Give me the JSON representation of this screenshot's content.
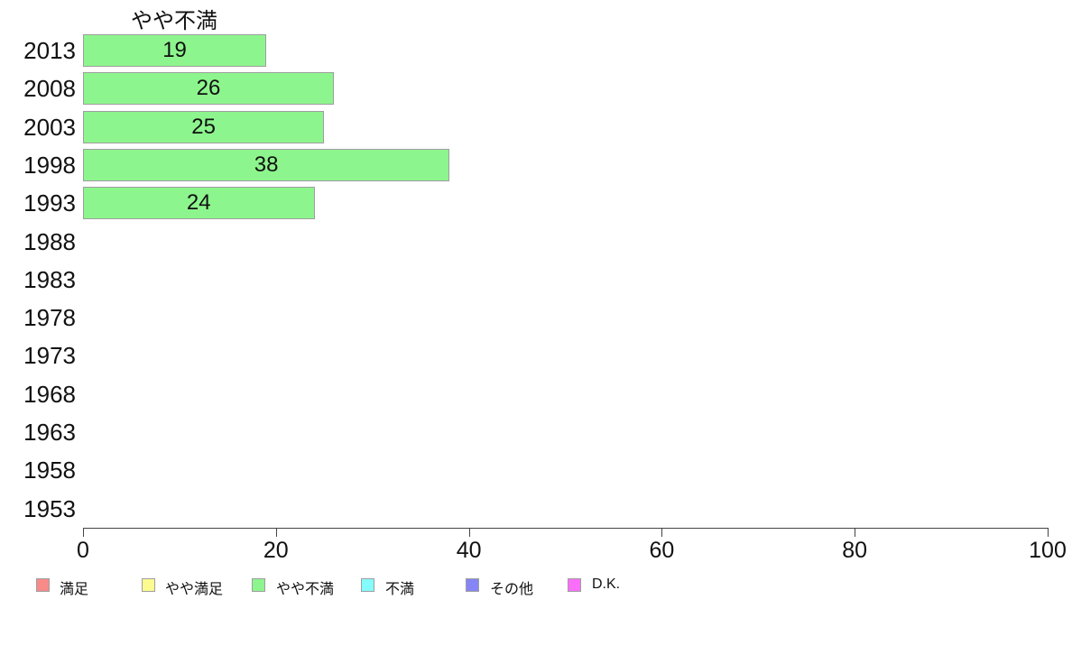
{
  "chart_data": {
    "type": "bar",
    "orientation": "horizontal",
    "title": "やや不満",
    "categories": [
      "2013",
      "2008",
      "2003",
      "1998",
      "1993",
      "1988",
      "1983",
      "1978",
      "1973",
      "1968",
      "1963",
      "1958",
      "1953"
    ],
    "values": [
      19,
      26,
      25,
      38,
      24,
      null,
      null,
      null,
      null,
      null,
      null,
      null,
      null
    ],
    "xlabel": "",
    "ylabel": "",
    "xlim": [
      0,
      100
    ],
    "xticks": [
      0,
      20,
      40,
      60,
      80,
      100
    ],
    "grid": "off",
    "bar_color": "#8DF58D",
    "bar_border_color": "#9E9E9E",
    "axis_color": "#444444",
    "legend_position": "bottom",
    "legend": [
      {
        "label": "満足",
        "color": "#F88A8A"
      },
      {
        "label": "やや満足",
        "color": "#FBFB90"
      },
      {
        "label": "やや不満",
        "color": "#8DF58D"
      },
      {
        "label": "不満",
        "color": "#85FCFC"
      },
      {
        "label": "その他",
        "color": "#8585F5"
      },
      {
        "label": "D.K.",
        "color": "#FB6EFB"
      }
    ]
  }
}
